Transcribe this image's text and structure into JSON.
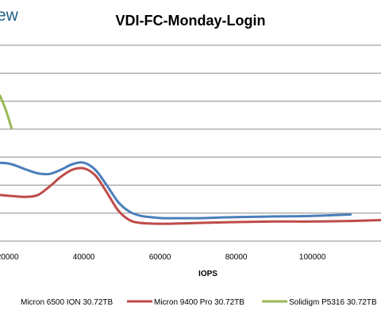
{
  "watermark": "ew",
  "chart_data": {
    "type": "line",
    "title": "VDI-FC-Monday-Login",
    "xlabel": "IOPS",
    "ylabel": "",
    "x_ticks": [
      20000,
      40000,
      60000,
      80000,
      100000
    ],
    "x_tick_labels": [
      "20000",
      "40000",
      "60000",
      "80000",
      "100000"
    ],
    "xlim": [
      18000,
      118000
    ],
    "ylim": [
      0,
      7
    ],
    "grid": "horizontal",
    "gridlines_y": [
      1,
      2,
      3,
      4,
      5,
      6,
      7
    ],
    "legend_position": "bottom",
    "series": [
      {
        "name": "Micron 6500 ION 30.72TB",
        "color": "#4a7ebb",
        "x": [
          18000,
          21000,
          25000,
          28000,
          31000,
          34000,
          37000,
          40000,
          43000,
          46000,
          49000,
          52000,
          55000,
          58000,
          61000,
          65000,
          70000,
          80000,
          90000,
          100000,
          110000
        ],
        "y": [
          2.8,
          2.75,
          2.55,
          2.42,
          2.4,
          2.55,
          2.75,
          2.8,
          2.55,
          2.0,
          1.4,
          1.05,
          0.9,
          0.85,
          0.82,
          0.82,
          0.82,
          0.86,
          0.88,
          0.9,
          0.95
        ]
      },
      {
        "name": "Micron 9400 Pro 30.72TB",
        "color": "#be4b48",
        "x": [
          18000,
          20000,
          22000,
          25000,
          28000,
          31000,
          34000,
          37000,
          40000,
          43000,
          46000,
          49000,
          52000,
          55000,
          60000,
          65000,
          70000,
          80000,
          90000,
          100000,
          110000,
          118000
        ],
        "y": [
          1.65,
          1.62,
          1.6,
          1.58,
          1.65,
          1.95,
          2.3,
          2.55,
          2.6,
          2.35,
          1.75,
          1.1,
          0.75,
          0.65,
          0.62,
          0.63,
          0.65,
          0.68,
          0.7,
          0.7,
          0.72,
          0.75
        ]
      },
      {
        "name": "Solidigm P5316 30.72TB",
        "color": "#98b954",
        "x": [
          18000,
          19500,
          21000
        ],
        "y": [
          5.2,
          4.7,
          4.05
        ]
      }
    ]
  }
}
